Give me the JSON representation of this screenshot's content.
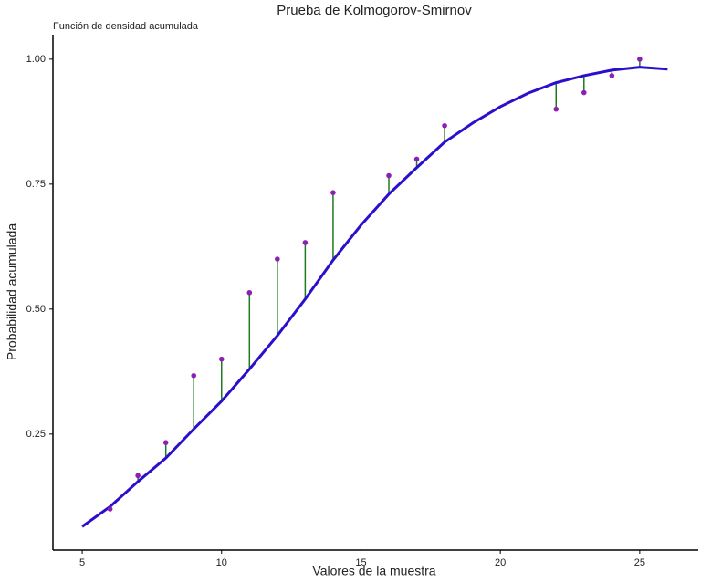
{
  "chart_data": {
    "type": "line",
    "title": "Prueba de Kolmogorov-Smirnov",
    "subtitle": "Función de densidad acumulada",
    "x_label": "Valores de la muestra",
    "y_label": "Probabilidad acumulada",
    "xlim": [
      3.95,
      27.1
    ],
    "ylim": [
      0.018,
      1.049
    ],
    "xticks": [
      5,
      10,
      15,
      20,
      25
    ],
    "yticks": [
      {
        "value": 0.25,
        "label": "0.25"
      },
      {
        "value": 0.5,
        "label": "0.50"
      },
      {
        "value": 0.75,
        "label": "0.75"
      },
      {
        "value": 1.0,
        "label": "1.00"
      }
    ],
    "grid": false,
    "cdf": {
      "color": "#2a10cc",
      "x": [
        5,
        6,
        7,
        8,
        9,
        10,
        11,
        12,
        13,
        14,
        15,
        16,
        17,
        18,
        19,
        20,
        21,
        22,
        23,
        24,
        25,
        26
      ],
      "values": [
        0.065,
        0.105,
        0.155,
        0.202,
        0.26,
        0.316,
        0.38,
        0.447,
        0.52,
        0.598,
        0.668,
        0.73,
        0.783,
        0.834,
        0.872,
        0.905,
        0.932,
        0.953,
        0.967,
        0.978,
        0.984,
        0.98
      ]
    },
    "ecdf": {
      "color": "#8e1fb5",
      "x": [
        6,
        7,
        8,
        9,
        10,
        11,
        12,
        13,
        14,
        16,
        17,
        18,
        22,
        23,
        24,
        25
      ],
      "values": [
        0.1,
        0.167,
        0.233,
        0.367,
        0.4,
        0.533,
        0.6,
        0.633,
        0.733,
        0.767,
        0.8,
        0.867,
        0.9,
        0.933,
        0.967,
        1.0
      ]
    },
    "segment_color": "#1e7a1e"
  }
}
